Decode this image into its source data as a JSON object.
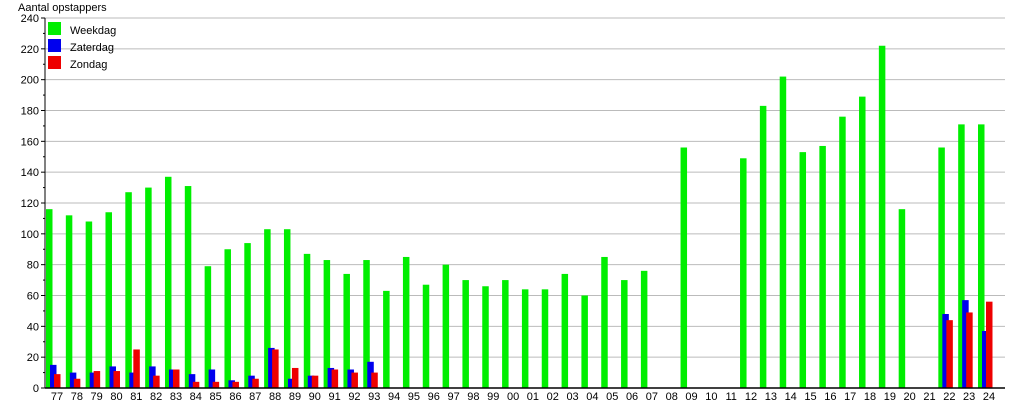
{
  "chart_data": {
    "type": "bar",
    "title": "",
    "ylabel": "Aantal opstappers",
    "xlabel": "",
    "ylim": [
      0,
      240
    ],
    "yticks": [
      0,
      20,
      40,
      60,
      80,
      100,
      120,
      140,
      160,
      180,
      200,
      220,
      240
    ],
    "grid": true,
    "legend_placement": "top-left",
    "categories": [
      "77",
      "78",
      "79",
      "80",
      "81",
      "82",
      "83",
      "84",
      "85",
      "86",
      "87",
      "88",
      "89",
      "90",
      "91",
      "92",
      "93",
      "94",
      "95",
      "96",
      "97",
      "98",
      "99",
      "00",
      "01",
      "02",
      "03",
      "04",
      "05",
      "06",
      "07",
      "08",
      "09",
      "10",
      "11",
      "12",
      "13",
      "14",
      "15",
      "16",
      "17",
      "18",
      "19",
      "20",
      "21",
      "22",
      "23",
      "24"
    ],
    "series": [
      {
        "name": "Weekdag",
        "color": "#00ee00",
        "values": [
          116,
          112,
          108,
          114,
          127,
          130,
          137,
          131,
          79,
          90,
          94,
          103,
          103,
          87,
          83,
          74,
          83,
          63,
          85,
          67,
          80,
          70,
          66,
          70,
          64,
          64,
          74,
          60,
          85,
          70,
          76,
          null,
          156,
          null,
          null,
          149,
          183,
          202,
          153,
          157,
          176,
          189,
          222,
          116,
          null,
          156,
          171,
          171
        ]
      },
      {
        "name": "Zaterdag",
        "color": "#0000ee",
        "values": [
          15,
          10,
          10,
          14,
          10,
          14,
          12,
          9,
          12,
          5,
          8,
          26,
          6,
          8,
          13,
          12,
          17,
          null,
          null,
          null,
          null,
          null,
          null,
          null,
          null,
          null,
          null,
          null,
          null,
          null,
          null,
          null,
          null,
          null,
          null,
          null,
          null,
          null,
          null,
          null,
          null,
          null,
          null,
          null,
          null,
          48,
          57,
          37
        ]
      },
      {
        "name": "Zondag",
        "color": "#ee0000",
        "values": [
          9,
          6,
          11,
          11,
          25,
          8,
          12,
          4,
          4,
          4,
          6,
          25,
          13,
          8,
          12,
          10,
          10,
          null,
          null,
          null,
          null,
          null,
          null,
          null,
          null,
          null,
          null,
          null,
          null,
          null,
          null,
          null,
          null,
          null,
          null,
          null,
          null,
          null,
          null,
          null,
          null,
          null,
          null,
          null,
          null,
          44,
          49,
          56
        ]
      }
    ]
  }
}
